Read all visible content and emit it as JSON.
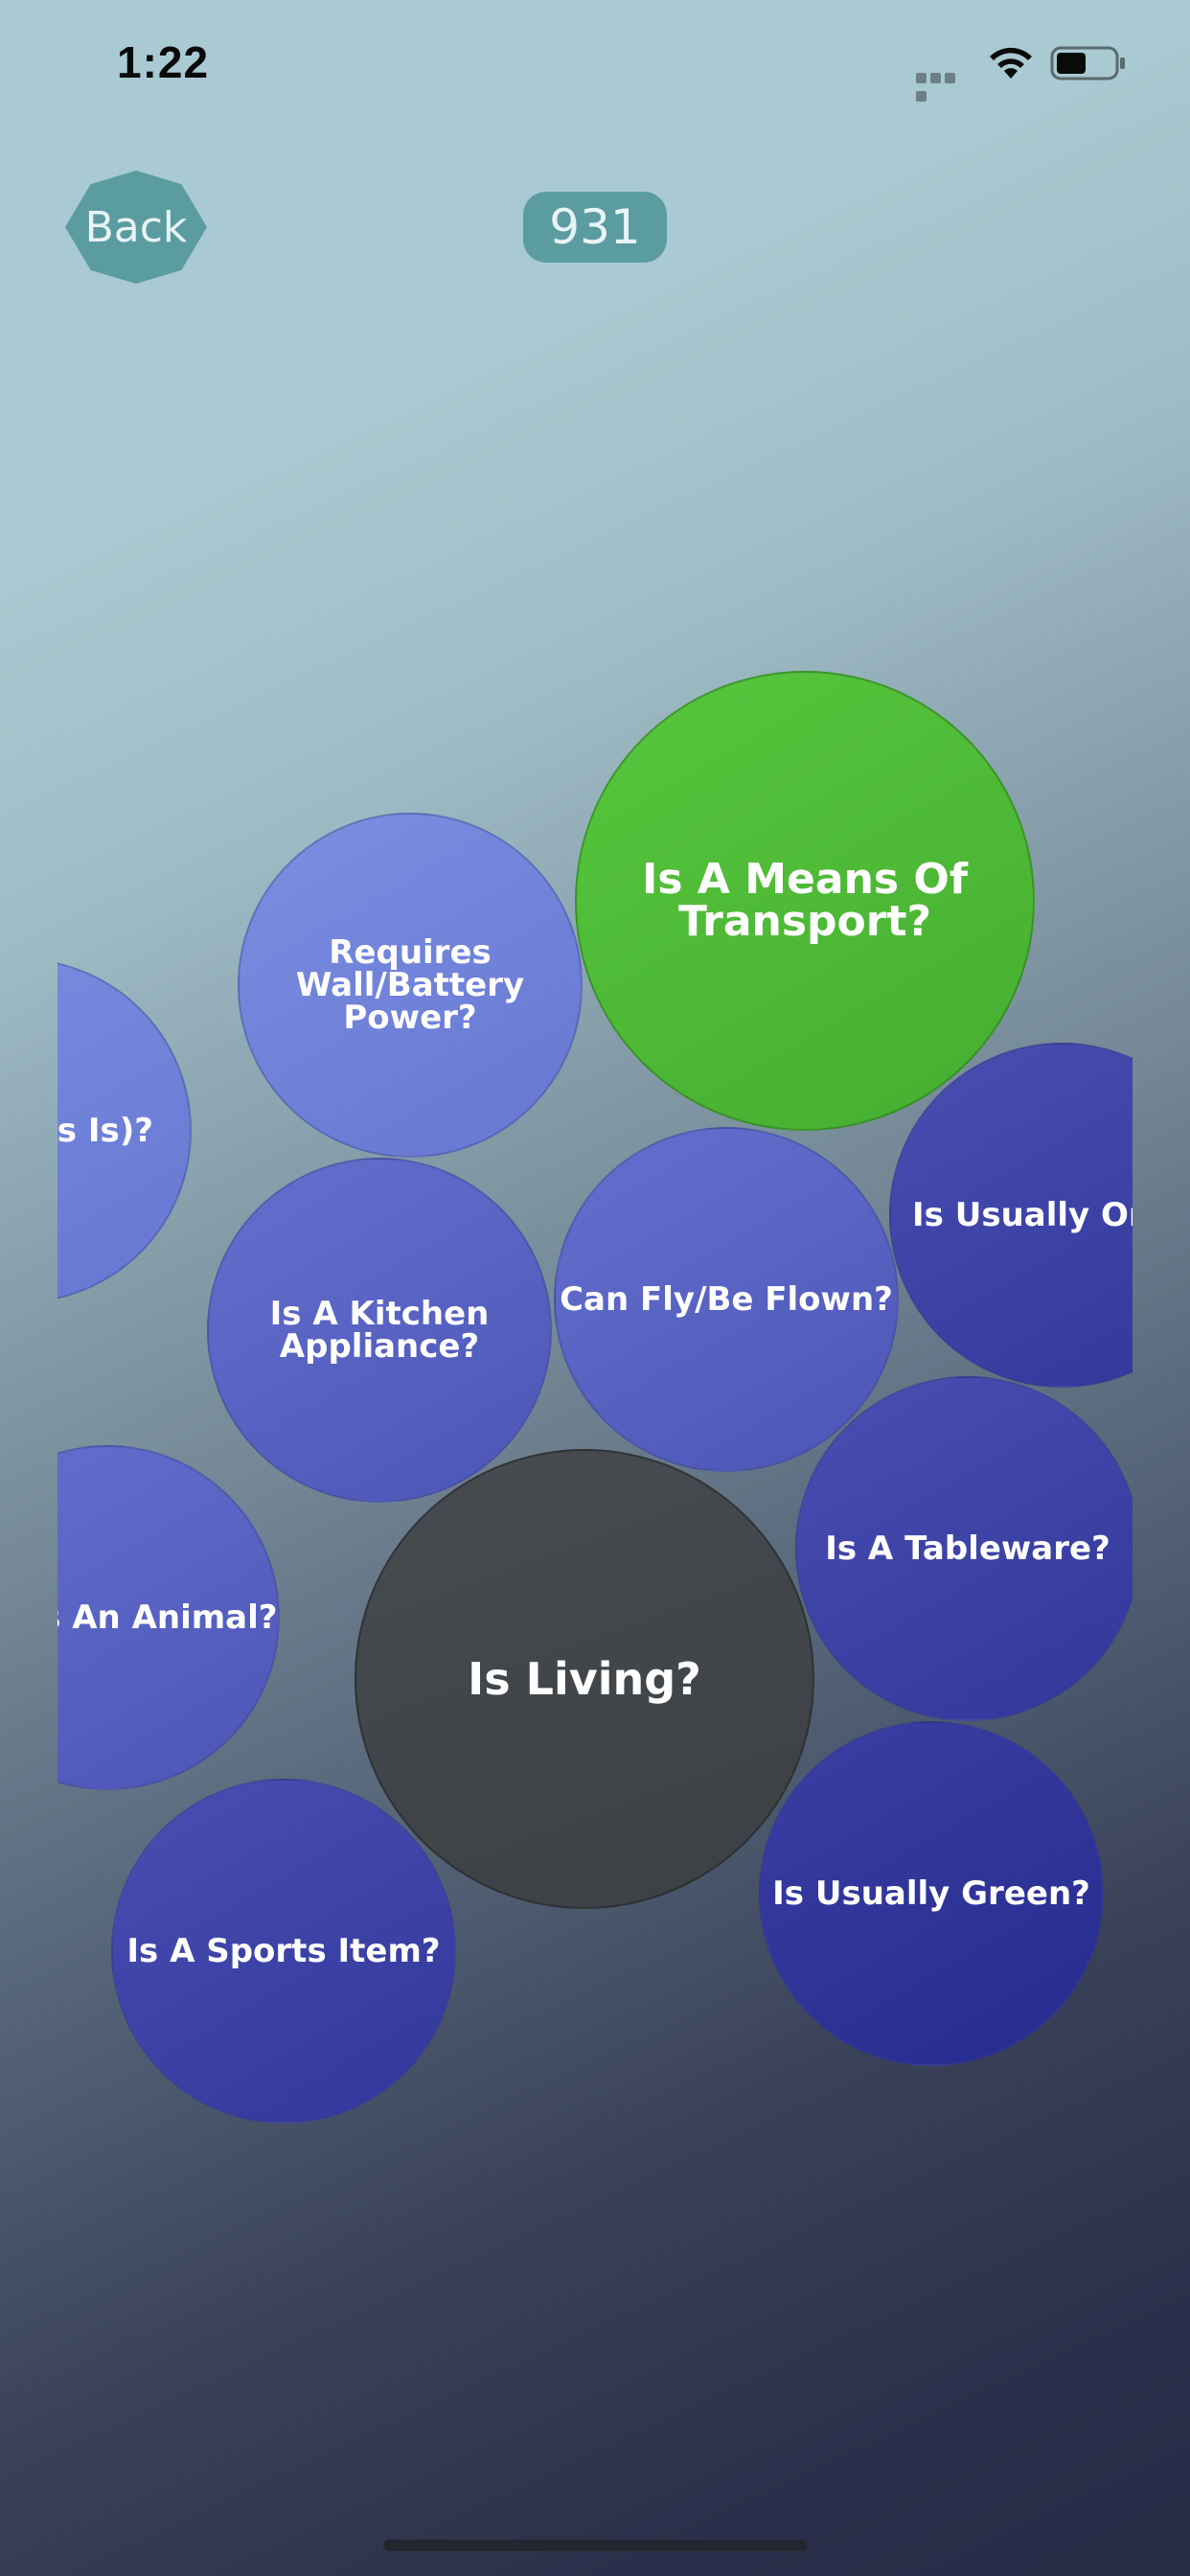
{
  "status_bar": {
    "time": "1:22"
  },
  "header": {
    "back_label": "Back",
    "score": "931"
  },
  "bubbles": [
    {
      "label": "Is A Means Of\nTransport?",
      "state": "selected"
    },
    {
      "label": "Requires\nWall/Battery Power?",
      "state": "option"
    },
    {
      "label": "ble (As Is)?",
      "state": "option"
    },
    {
      "label": "Is A Kitchen\nAppliance?",
      "state": "option"
    },
    {
      "label": "Can Fly/Be Flown?",
      "state": "option"
    },
    {
      "label": "Is Usually Ora",
      "state": "option"
    },
    {
      "label": "Is An Animal?",
      "state": "option"
    },
    {
      "label": "Is Living?",
      "state": "current"
    },
    {
      "label": "Is A Tableware?",
      "state": "option"
    },
    {
      "label": "Is Usually Green?",
      "state": "option"
    },
    {
      "label": "Is A Sports Item?",
      "state": "option"
    }
  ],
  "colors": {
    "selected": "#4fbe38",
    "current": "#414549",
    "option": "#5a63c4",
    "button": "#5b9ca1"
  }
}
